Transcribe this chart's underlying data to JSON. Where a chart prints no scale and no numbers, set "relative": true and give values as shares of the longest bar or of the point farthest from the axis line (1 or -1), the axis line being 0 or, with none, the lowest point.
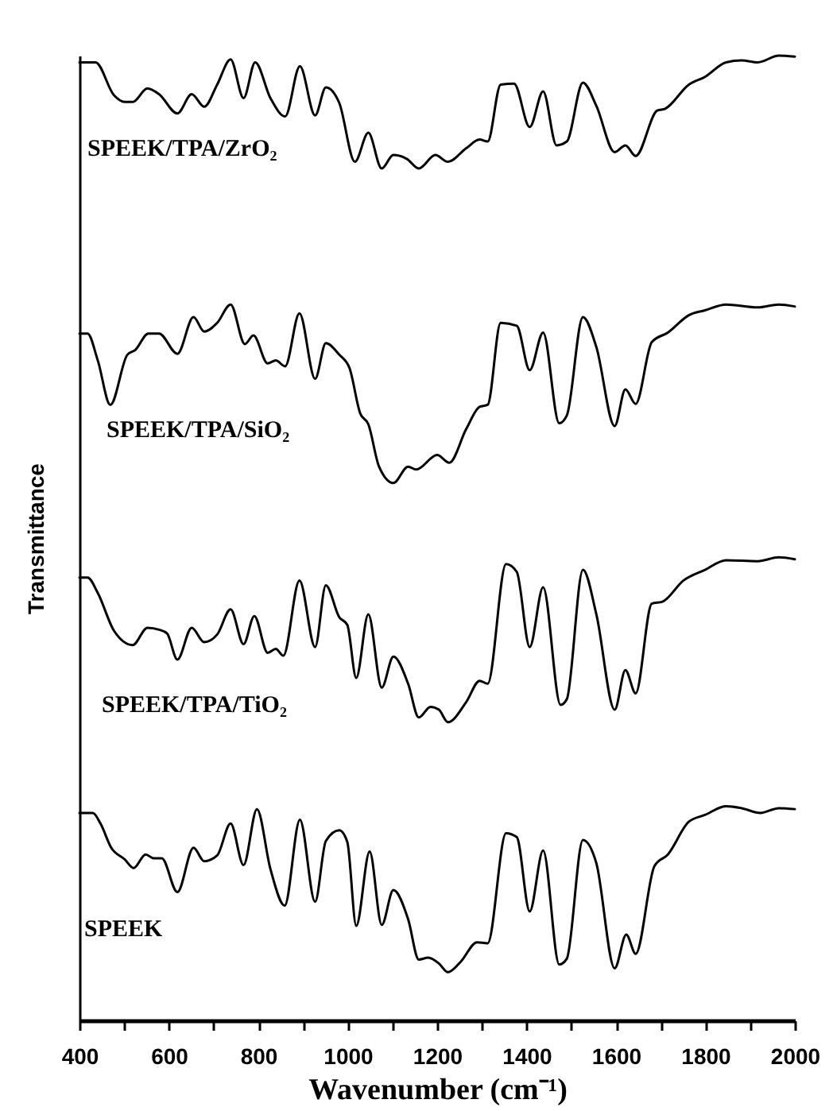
{
  "chart_data": {
    "type": "line",
    "relative": true,
    "xlabel": "Wavenumber (cm⁻¹)",
    "ylabel": "Transmittance",
    "tick_labels": "x",
    "xlim": [
      400,
      2000
    ],
    "xticks": [
      400,
      {
        "value": 500,
        "label": null
      },
      600,
      {
        "value": 700,
        "label": null
      },
      800,
      {
        "value": 900,
        "label": null
      },
      1000,
      {
        "value": 1100,
        "label": null
      },
      1200,
      {
        "value": 1300,
        "label": null
      },
      1400,
      {
        "value": 1500,
        "label": null
      },
      1600,
      {
        "value": 1700,
        "label": null
      },
      1800,
      {
        "value": 1900,
        "label": null
      },
      2000
    ],
    "series": [
      {
        "name": "SPEEK/TPA/ZrO₂",
        "color": "#000000",
        "x": [
          400,
          436,
          477,
          501,
          519,
          552,
          578,
          619,
          651,
          679,
          708,
          738,
          767,
          793,
          827,
          860,
          893,
          927,
          951,
          981,
          1016,
          1046,
          1076,
          1102,
          1132,
          1159,
          1196,
          1224,
          1265,
          1295,
          1313,
          1342,
          1372,
          1407,
          1437,
          1467,
          1490,
          1526,
          1556,
          1597,
          1621,
          1644,
          1692,
          1710,
          1763,
          1799,
          1846,
          1881,
          1917,
          1964,
          2000
        ],
        "values": [
          0.993,
          0.993,
          0.959,
          0.952,
          0.952,
          0.966,
          0.96,
          0.94,
          0.96,
          0.947,
          0.97,
          0.996,
          0.956,
          0.993,
          0.956,
          0.937,
          0.989,
          0.938,
          0.967,
          0.951,
          0.89,
          0.92,
          0.883,
          0.897,
          0.893,
          0.883,
          0.897,
          0.89,
          0.904,
          0.913,
          0.911,
          0.97,
          0.971,
          0.926,
          0.963,
          0.907,
          0.911,
          0.972,
          0.948,
          0.9,
          0.907,
          0.896,
          0.943,
          0.945,
          0.97,
          0.978,
          0.993,
          0.995,
          0.993,
          1.0,
          0.999
        ]
      },
      {
        "name": "SPEEK/TPA/SiO₂",
        "color": "#000000",
        "x": [
          400,
          418,
          441,
          469,
          507,
          525,
          554,
          578,
          619,
          655,
          679,
          708,
          738,
          770,
          789,
          821,
          839,
          860,
          892,
          927,
          951,
          981,
          1004,
          1028,
          1046,
          1070,
          1102,
          1135,
          1153,
          1200,
          1227,
          1265,
          1295,
          1313,
          1342,
          1378,
          1407,
          1437,
          1473,
          1490,
          1526,
          1556,
          1597,
          1621,
          1644,
          1680,
          1716,
          1763,
          1799,
          1846,
          1917,
          1964,
          2000
        ],
        "values": [
          0.712,
          0.712,
          0.684,
          0.638,
          0.69,
          0.695,
          0.712,
          0.712,
          0.691,
          0.729,
          0.714,
          0.723,
          0.742,
          0.701,
          0.71,
          0.681,
          0.684,
          0.678,
          0.733,
          0.665,
          0.702,
          0.69,
          0.676,
          0.629,
          0.618,
          0.574,
          0.557,
          0.574,
          0.571,
          0.586,
          0.578,
          0.613,
          0.636,
          0.638,
          0.723,
          0.72,
          0.674,
          0.713,
          0.619,
          0.627,
          0.729,
          0.698,
          0.616,
          0.654,
          0.639,
          0.703,
          0.713,
          0.731,
          0.736,
          0.742,
          0.739,
          0.742,
          0.74
        ]
      },
      {
        "name": "SPEEK/TPA/TiO₂",
        "color": "#000000",
        "x": [
          400,
          418,
          441,
          477,
          519,
          552,
          578,
          596,
          619,
          651,
          679,
          708,
          738,
          767,
          791,
          821,
          839,
          856,
          892,
          927,
          951,
          981,
          999,
          1019,
          1046,
          1076,
          1102,
          1135,
          1159,
          1185,
          1204,
          1224,
          1265,
          1295,
          1313,
          1354,
          1378,
          1407,
          1437,
          1476,
          1490,
          1526,
          1556,
          1597,
          1621,
          1644,
          1680,
          1704,
          1751,
          1799,
          1846,
          1917,
          1964,
          2000
        ],
        "values": [
          0.459,
          0.459,
          0.443,
          0.404,
          0.389,
          0.407,
          0.405,
          0.401,
          0.374,
          0.407,
          0.392,
          0.4,
          0.426,
          0.39,
          0.419,
          0.381,
          0.385,
          0.378,
          0.456,
          0.387,
          0.451,
          0.418,
          0.41,
          0.355,
          0.421,
          0.345,
          0.377,
          0.349,
          0.314,
          0.325,
          0.322,
          0.309,
          0.33,
          0.352,
          0.349,
          0.473,
          0.465,
          0.387,
          0.449,
          0.327,
          0.333,
          0.467,
          0.421,
          0.322,
          0.363,
          0.339,
          0.432,
          0.434,
          0.456,
          0.467,
          0.477,
          0.476,
          0.48,
          0.478
        ]
      },
      {
        "name": "SPEEK",
        "color": "#000000",
        "x": [
          400,
          430,
          447,
          471,
          501,
          521,
          548,
          566,
          584,
          619,
          655,
          679,
          708,
          738,
          767,
          797,
          827,
          859,
          893,
          927,
          951,
          981,
          999,
          1019,
          1049,
          1076,
          1102,
          1135,
          1159,
          1180,
          1204,
          1224,
          1253,
          1289,
          1313,
          1354,
          1378,
          1407,
          1437,
          1473,
          1490,
          1526,
          1556,
          1597,
          1623,
          1644,
          1686,
          1716,
          1763,
          1799,
          1846,
          1881,
          1923,
          1964,
          2000
        ],
        "values": [
          0.215,
          0.215,
          0.204,
          0.179,
          0.167,
          0.158,
          0.172,
          0.168,
          0.168,
          0.133,
          0.179,
          0.165,
          0.171,
          0.204,
          0.161,
          0.219,
          0.157,
          0.119,
          0.208,
          0.123,
          0.186,
          0.197,
          0.185,
          0.098,
          0.175,
          0.099,
          0.135,
          0.105,
          0.063,
          0.065,
          0.059,
          0.05,
          0.061,
          0.081,
          0.08,
          0.194,
          0.19,
          0.113,
          0.176,
          0.058,
          0.064,
          0.187,
          0.163,
          0.054,
          0.089,
          0.069,
          0.16,
          0.172,
          0.206,
          0.213,
          0.222,
          0.22,
          0.215,
          0.22,
          0.219
        ]
      }
    ]
  }
}
